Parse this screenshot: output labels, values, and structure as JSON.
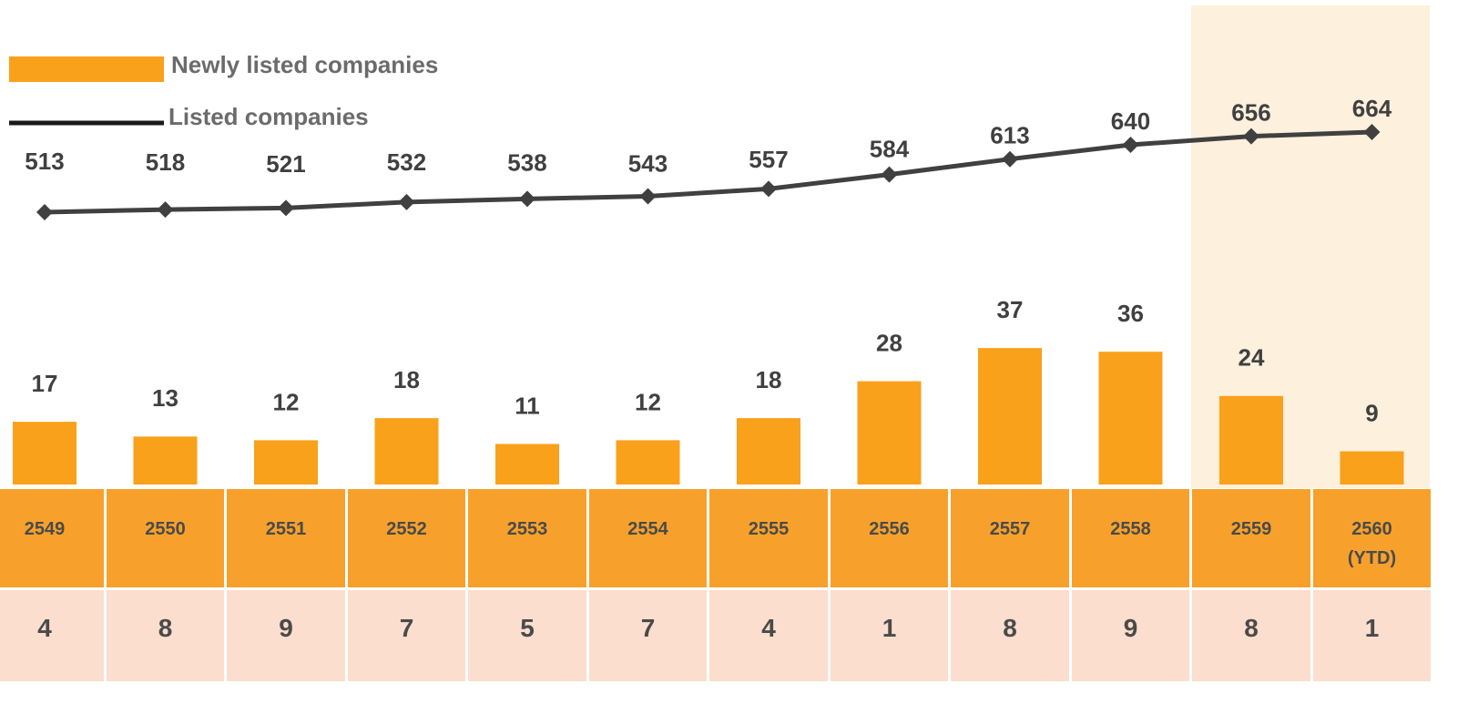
{
  "chart_data": {
    "type": "bar_line",
    "categories": [
      "2549",
      "2550",
      "2551",
      "2552",
      "2553",
      "2554",
      "2555",
      "2556",
      "2557",
      "2558",
      "2559",
      "2560\n(YTD)"
    ],
    "series": [
      {
        "name": "Newly listed companies",
        "type": "bar",
        "color": "#f9a11b",
        "values": [
          17,
          13,
          12,
          18,
          11,
          12,
          18,
          28,
          37,
          36,
          24,
          9
        ]
      },
      {
        "name": "Listed companies",
        "type": "line",
        "color": "#404040",
        "values": [
          513,
          518,
          521,
          532,
          538,
          543,
          557,
          584,
          613,
          640,
          656,
          664
        ]
      }
    ],
    "bottom_row": [
      4,
      8,
      9,
      7,
      5,
      7,
      4,
      1,
      8,
      9,
      8,
      1
    ]
  }
}
